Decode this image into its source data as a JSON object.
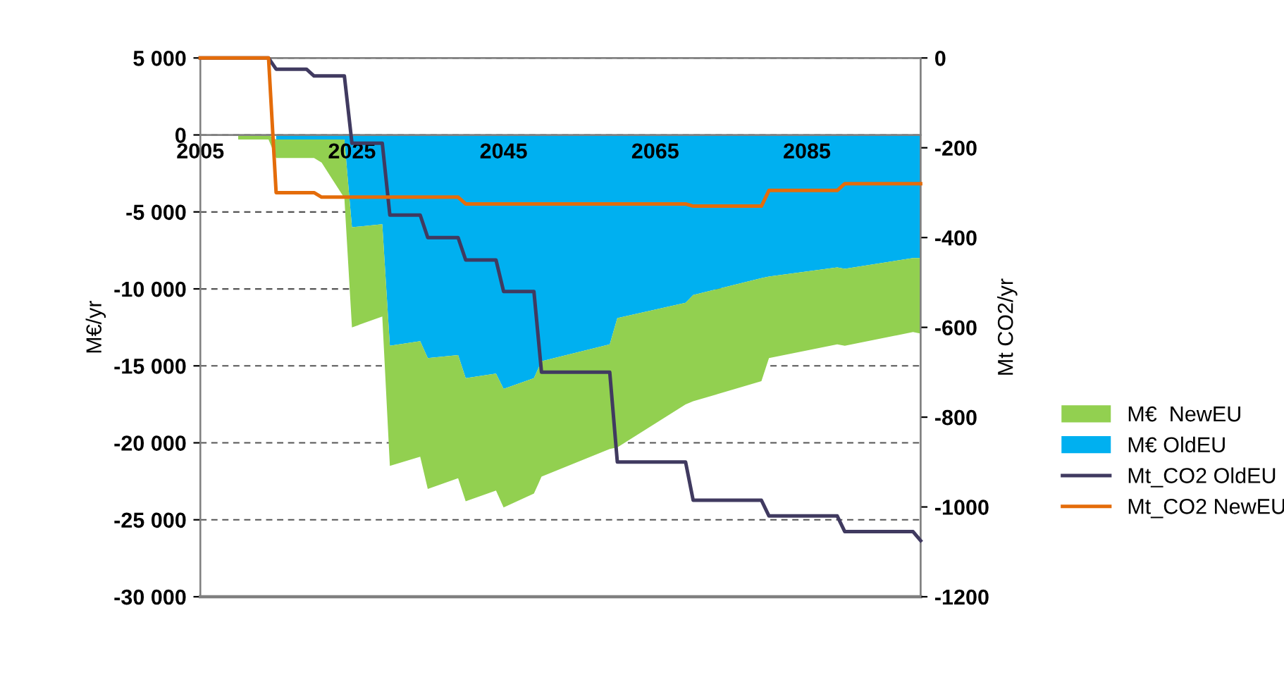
{
  "chart_data": {
    "type": "area",
    "stacked": true,
    "ylabel": "M€/yr",
    "y2label": "Mt CO2/yr",
    "x": [
      2010,
      2014,
      2015,
      2020,
      2021,
      2024,
      2025,
      2029,
      2030,
      2034,
      2035,
      2039,
      2040,
      2044,
      2045,
      2049,
      2050,
      2059,
      2060,
      2069,
      2070,
      2079,
      2080,
      2089,
      2090,
      2099,
      2100
    ],
    "series": [
      {
        "name": "M€ OldEU",
        "color": "#00b0f0",
        "values": [
          null,
          null,
          -300,
          -300,
          -300,
          -300,
          -6000,
          -5800,
          -13700,
          -13400,
          -14500,
          -14300,
          -15800,
          -15500,
          -16500,
          -15800,
          -14700,
          -13600,
          -11900,
          -10900,
          -10400,
          -9300,
          -9200,
          -8600,
          -8700,
          -8000,
          -8000
        ]
      },
      {
        "name": "M€  NewEU",
        "color": "#92d050",
        "values": [
          -300,
          -300,
          -1200,
          -1200,
          -1500,
          -3800,
          -6500,
          -6000,
          -7800,
          -7500,
          -8500,
          -8000,
          -8000,
          -7600,
          -7700,
          -7500,
          -7500,
          -6800,
          -8400,
          -6600,
          -6900,
          -6700,
          -5300,
          -5000,
          -5000,
          -4800,
          -4900
        ]
      },
      {
        "name": "Mt_CO2 OldEU",
        "type": "line",
        "axis": "y2",
        "color": "#403a60",
        "x": [
          2005,
          2014,
          2015,
          2019,
          2020,
          2024,
          2025,
          2029,
          2030,
          2034,
          2035,
          2039,
          2040,
          2044,
          2045,
          2049,
          2050,
          2059,
          2060,
          2069,
          2070,
          2079,
          2080,
          2089,
          2090,
          2099,
          2100
        ],
        "values": [
          0,
          0,
          -25,
          -25,
          -40,
          -40,
          -190,
          -190,
          -350,
          -350,
          -400,
          -400,
          -450,
          -450,
          -520,
          -520,
          -700,
          -700,
          -900,
          -900,
          -985,
          -985,
          -1020,
          -1020,
          -1055,
          -1055,
          -1075
        ]
      },
      {
        "name": "Mt_CO2 NewEU",
        "type": "line",
        "axis": "y2",
        "color": "#e46c0a",
        "x": [
          2005,
          2014,
          2015,
          2020,
          2021,
          2039,
          2040,
          2069,
          2070,
          2079,
          2080,
          2089,
          2090,
          2100
        ],
        "values": [
          0,
          0,
          -300,
          -300,
          -310,
          -310,
          -325,
          -325,
          -330,
          -330,
          -295,
          -295,
          -280,
          -280
        ]
      }
    ],
    "xlim": [
      2005,
      2100
    ],
    "xticks": [
      2005,
      2025,
      2045,
      2065,
      2085
    ],
    "ylim": [
      -30000,
      5000
    ],
    "yticks": [
      {
        "value": 5000,
        "label": "5 000"
      },
      0,
      {
        "value": -5000,
        "label": "-5 000"
      },
      {
        "value": -10000,
        "label": "-10 000"
      },
      {
        "value": -15000,
        "label": "-15 000"
      },
      {
        "value": -20000,
        "label": "-20 000"
      },
      {
        "value": -25000,
        "label": "-25 000"
      },
      {
        "value": -30000,
        "label": "-30 000"
      }
    ],
    "y2lim": [
      -1200,
      0
    ],
    "y2ticks": [
      0,
      -200,
      -400,
      -600,
      -800,
      -1000,
      -1200
    ],
    "grid": "y",
    "legend": "right",
    "line_style": "solid",
    "marker": "none"
  }
}
